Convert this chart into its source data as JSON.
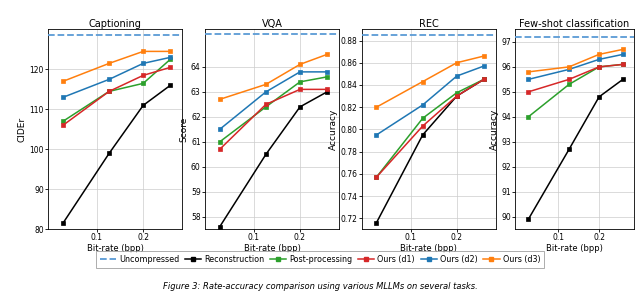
{
  "x_values": [
    0.06,
    0.12,
    0.2,
    0.3
  ],
  "panels": [
    {
      "title": "Captioning",
      "ylabel": "CIDEr",
      "ylim": [
        80,
        130
      ],
      "yticks": [
        80,
        90,
        100,
        110,
        120
      ],
      "uncompressed": 128.5,
      "series": {
        "Reconstruction": [
          81.5,
          99.0,
          111.0,
          116.0
        ],
        "Post-processing": [
          107.0,
          114.5,
          116.5,
          122.5
        ],
        "Ours (d1)": [
          106.0,
          114.5,
          118.5,
          120.5
        ],
        "Ours (d2)": [
          113.0,
          117.5,
          121.5,
          123.0
        ],
        "Ours (d3)": [
          117.0,
          121.5,
          124.5,
          124.5
        ]
      }
    },
    {
      "title": "VQA",
      "ylabel": "Score",
      "ylim": [
        57.5,
        65.5
      ],
      "yticks": [
        58,
        59,
        60,
        61,
        62,
        63,
        64
      ],
      "uncompressed": 65.3,
      "series": {
        "Reconstruction": [
          57.6,
          60.5,
          62.4,
          63.0
        ],
        "Post-processing": [
          61.0,
          62.4,
          63.4,
          63.6
        ],
        "Ours (d1)": [
          60.7,
          62.5,
          63.1,
          63.1
        ],
        "Ours (d2)": [
          61.5,
          63.0,
          63.8,
          63.8
        ],
        "Ours (d3)": [
          62.7,
          63.3,
          64.1,
          64.5
        ]
      }
    },
    {
      "title": "REC",
      "ylabel": "Accuracy",
      "ylim": [
        0.71,
        0.89
      ],
      "yticks": [
        0.72,
        0.74,
        0.76,
        0.78,
        0.8,
        0.82,
        0.84,
        0.86,
        0.88
      ],
      "uncompressed": 0.885,
      "series": {
        "Reconstruction": [
          0.716,
          0.795,
          0.83,
          0.845
        ],
        "Post-processing": [
          0.757,
          0.81,
          0.833,
          0.845
        ],
        "Ours (d1)": [
          0.757,
          0.803,
          0.83,
          0.845
        ],
        "Ours (d2)": [
          0.795,
          0.822,
          0.848,
          0.857
        ],
        "Ours (d3)": [
          0.82,
          0.843,
          0.86,
          0.866
        ]
      }
    },
    {
      "title": "Few-shot classification",
      "ylabel": "Accuracy",
      "ylim": [
        89.5,
        97.5
      ],
      "yticks": [
        90,
        91,
        92,
        93,
        94,
        95,
        96,
        97
      ],
      "uncompressed": 97.2,
      "series": {
        "Reconstruction": [
          89.9,
          92.7,
          94.8,
          95.5
        ],
        "Post-processing": [
          94.0,
          95.3,
          96.0,
          96.1
        ],
        "Ours (d1)": [
          95.0,
          95.5,
          96.0,
          96.1
        ],
        "Ours (d2)": [
          95.5,
          95.9,
          96.3,
          96.5
        ],
        "Ours (d3)": [
          95.8,
          96.0,
          96.5,
          96.7
        ]
      }
    }
  ],
  "series_styles": {
    "Reconstruction": {
      "color": "#000000",
      "marker": "s",
      "linestyle": "-"
    },
    "Post-processing": {
      "color": "#2ca02c",
      "marker": "s",
      "linestyle": "-"
    },
    "Ours (d1)": {
      "color": "#d62728",
      "marker": "s",
      "linestyle": "-"
    },
    "Ours (d2)": {
      "color": "#1f77b4",
      "marker": "s",
      "linestyle": "-"
    },
    "Ours (d3)": {
      "color": "#ff7f0e",
      "marker": "s",
      "linestyle": "-"
    }
  },
  "uncompressed_color": "#5b9bd5",
  "uncompressed_linestyle": "--",
  "xlabel": "Bit-rate (bpp)",
  "figure_caption": "Figure 3: Rate-accuracy comparison using various MLLMs on several tasks.",
  "background_color": "#ffffff",
  "grid_color": "#cccccc"
}
